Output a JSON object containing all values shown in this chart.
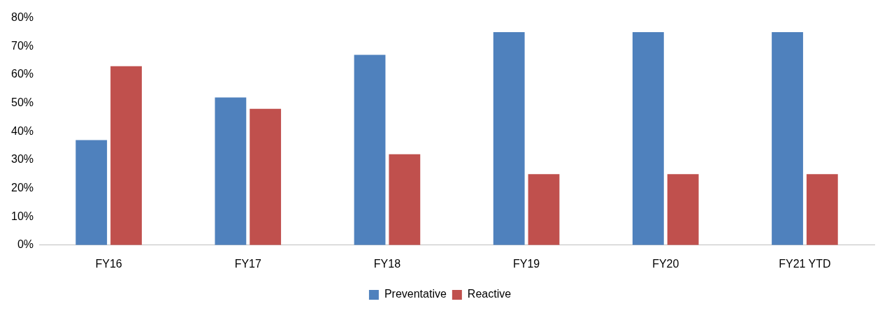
{
  "chart_data": {
    "type": "bar",
    "categories": [
      "FY16",
      "FY17",
      "FY18",
      "FY19",
      "FY20",
      "FY21 YTD"
    ],
    "series": [
      {
        "name": "Preventative",
        "color": "#4f81bd",
        "values": [
          37,
          52,
          67,
          75,
          75,
          75
        ]
      },
      {
        "name": "Reactive",
        "color": "#c0504d",
        "values": [
          63,
          48,
          32,
          25,
          25,
          25
        ]
      }
    ],
    "ylim": [
      0,
      80
    ],
    "yticks": [
      {
        "value": 0,
        "label": "0%"
      },
      {
        "value": 10,
        "label": "10%"
      },
      {
        "value": 20,
        "label": "20%"
      },
      {
        "value": 30,
        "label": "30%"
      },
      {
        "value": 40,
        "label": "40%"
      },
      {
        "value": 50,
        "label": "50%"
      },
      {
        "value": 60,
        "label": "60%"
      },
      {
        "value": 70,
        "label": "70%"
      },
      {
        "value": 80,
        "label": "80%"
      }
    ],
    "grid": false,
    "legend": "bottom"
  }
}
